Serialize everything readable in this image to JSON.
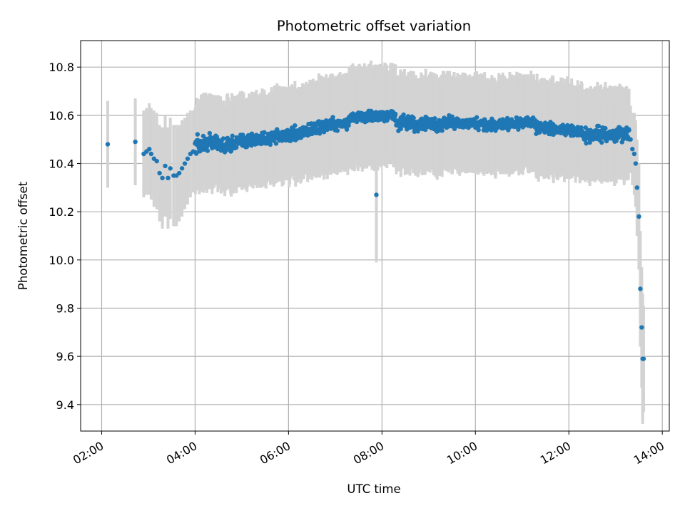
{
  "chart_data": {
    "type": "scatter",
    "title": "Photometric offset variation",
    "xlabel": "UTC time",
    "ylabel": "Photometric offset",
    "x_unit": "hours UTC",
    "xlim": [
      1.55,
      14.15
    ],
    "ylim": [
      9.29,
      10.91
    ],
    "grid": true,
    "x_ticks": [
      2,
      4,
      6,
      8,
      10,
      12,
      14
    ],
    "x_tick_labels": [
      "02:00",
      "04:00",
      "06:00",
      "08:00",
      "10:00",
      "12:00",
      "14:00"
    ],
    "y_ticks": [
      9.4,
      9.6,
      9.8,
      10.0,
      10.2,
      10.4,
      10.6,
      10.8
    ],
    "y_tick_labels": [
      "9.4",
      "9.6",
      "9.8",
      "10.0",
      "10.2",
      "10.4",
      "10.6",
      "10.8"
    ],
    "colors": {
      "points": "#1f77b4",
      "error_bars": "#d3d3d3",
      "grid": "#b0b0b0"
    },
    "series": [
      {
        "name": "",
        "marker": "dot",
        "x": [
          2.13,
          2.72,
          2.9,
          2.96,
          3.02,
          3.06,
          3.12,
          3.18,
          3.24,
          3.3,
          3.36,
          3.42,
          3.47,
          3.54,
          3.6,
          3.66,
          3.72,
          3.78,
          3.84,
          3.9,
          3.96,
          7.88,
          13.32,
          13.36,
          13.4,
          13.43,
          13.46,
          13.5,
          13.53,
          13.56,
          13.58,
          13.6
        ],
        "y": [
          10.48,
          10.49,
          10.44,
          10.45,
          10.46,
          10.44,
          10.42,
          10.41,
          10.36,
          10.34,
          10.39,
          10.34,
          10.38,
          10.35,
          10.35,
          10.36,
          10.38,
          10.4,
          10.42,
          10.44,
          10.45,
          10.27,
          10.5,
          10.46,
          10.44,
          10.4,
          10.3,
          10.18,
          9.88,
          9.72,
          9.59,
          9.59
        ],
        "yerr": [
          0.18,
          0.18,
          0.18,
          0.18,
          0.19,
          0.19,
          0.2,
          0.2,
          0.2,
          0.21,
          0.21,
          0.21,
          0.21,
          0.21,
          0.21,
          0.2,
          0.2,
          0.19,
          0.19,
          0.18,
          0.17,
          0.28,
          0.14,
          0.15,
          0.17,
          0.18,
          0.2,
          0.22,
          0.24,
          0.25,
          0.27,
          0.22
        ]
      }
    ],
    "dense_segments": [
      {
        "x_start": 4.0,
        "x_end": 4.5,
        "y_start": 10.47,
        "y_end": 10.5,
        "yerr": 0.17,
        "noise": 0.022
      },
      {
        "x_start": 4.5,
        "x_end": 5.5,
        "y_start": 10.47,
        "y_end": 10.51,
        "yerr": 0.17,
        "noise": 0.018
      },
      {
        "x_start": 5.5,
        "x_end": 6.5,
        "y_start": 10.5,
        "y_end": 10.54,
        "yerr": 0.17,
        "noise": 0.016
      },
      {
        "x_start": 6.5,
        "x_end": 7.3,
        "y_start": 10.55,
        "y_end": 10.57,
        "yerr": 0.18,
        "noise": 0.015
      },
      {
        "x_start": 7.3,
        "x_end": 8.3,
        "y_start": 10.59,
        "y_end": 10.6,
        "yerr": 0.19,
        "noise": 0.013
      },
      {
        "x_start": 8.3,
        "x_end": 9.3,
        "y_start": 10.57,
        "y_end": 10.56,
        "yerr": 0.18,
        "noise": 0.018
      },
      {
        "x_start": 9.3,
        "x_end": 10.3,
        "y_start": 10.57,
        "y_end": 10.56,
        "yerr": 0.18,
        "noise": 0.014
      },
      {
        "x_start": 10.3,
        "x_end": 11.3,
        "y_start": 10.56,
        "y_end": 10.57,
        "yerr": 0.18,
        "noise": 0.014
      },
      {
        "x_start": 11.3,
        "x_end": 12.3,
        "y_start": 10.55,
        "y_end": 10.53,
        "yerr": 0.18,
        "noise": 0.014
      },
      {
        "x_start": 12.3,
        "x_end": 13.3,
        "y_start": 10.52,
        "y_end": 10.52,
        "yerr": 0.17,
        "noise": 0.016
      }
    ]
  }
}
